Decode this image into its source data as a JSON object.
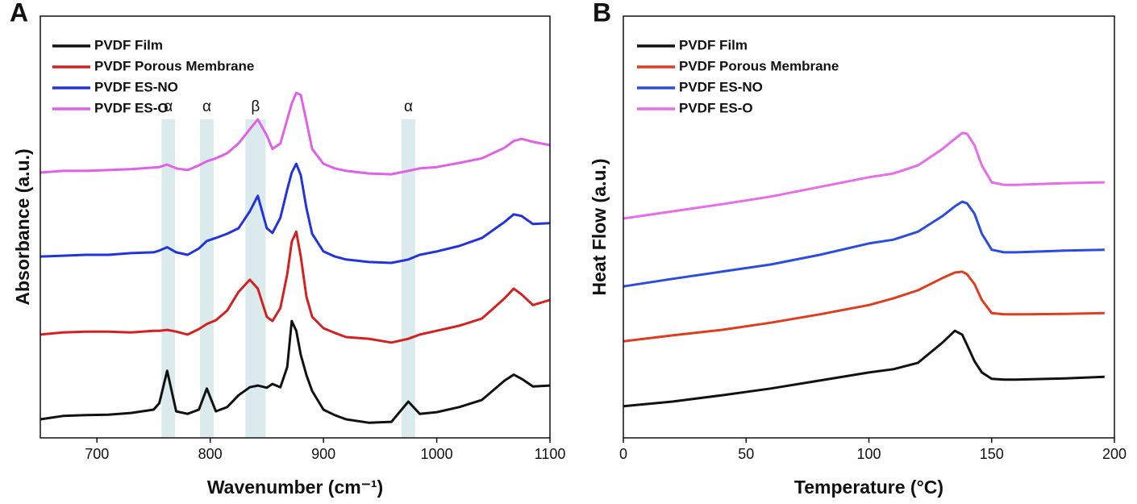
{
  "chart_data": [
    {
      "type": "line",
      "panel_label": "A",
      "xlabel": "Wavenumber (cm⁻¹)",
      "ylabel": "Absorbance (a.u.)",
      "xlim": [
        650,
        1100
      ],
      "xticks": [
        700,
        800,
        900,
        1000,
        1100
      ],
      "ylim": [
        0,
        100
      ],
      "x": [
        650,
        670,
        690,
        710,
        730,
        750,
        755,
        762,
        770,
        780,
        790,
        797,
        805,
        815,
        825,
        835,
        842,
        850,
        855,
        862,
        868,
        872,
        876,
        880,
        885,
        890,
        900,
        910,
        920,
        940,
        960,
        975,
        985,
        1000,
        1020,
        1040,
        1060,
        1068,
        1075,
        1085,
        1100
      ],
      "bands": [
        {
          "label": "α",
          "range": [
            757,
            769
          ]
        },
        {
          "label": "α",
          "range": [
            791,
            803
          ]
        },
        {
          "label": "β",
          "range": [
            831,
            849
          ]
        },
        {
          "label": "α",
          "range": [
            969,
            981
          ]
        }
      ],
      "series": [
        {
          "name": "PVDF Film",
          "color": "#111111",
          "values": [
            4.4,
            5.2,
            5.4,
            5.5,
            5.9,
            6.7,
            8.2,
            15.9,
            6.3,
            5.7,
            6.7,
            11.7,
            6.3,
            7.3,
            10.1,
            12.0,
            12.4,
            11.9,
            12.8,
            12.0,
            16.8,
            27.7,
            25.4,
            19.7,
            14.9,
            11.1,
            6.7,
            5.4,
            4.4,
            3.6,
            3.8,
            8.6,
            5.7,
            6.1,
            7.3,
            9.0,
            13.6,
            15.0,
            14.0,
            12.2,
            12.4
          ]
        },
        {
          "name": "PVDF Porous Membrane",
          "color": "#d42020",
          "values": [
            24.5,
            25.0,
            25.2,
            25.2,
            25.0,
            25.4,
            25.4,
            25.6,
            25.2,
            24.5,
            25.8,
            27.0,
            27.9,
            30.2,
            34.6,
            37.5,
            35.4,
            28.7,
            27.7,
            30.8,
            38.8,
            46.5,
            48.9,
            43.0,
            33.5,
            28.7,
            26.0,
            24.9,
            23.9,
            23.5,
            22.6,
            23.5,
            24.5,
            25.4,
            26.6,
            28.3,
            33.1,
            35.4,
            34.0,
            31.5,
            32.7
          ]
        },
        {
          "name": "PVDF ES-NO",
          "color": "#2233dd",
          "values": [
            43.0,
            43.2,
            43.4,
            43.4,
            43.8,
            44.0,
            44.4,
            45.2,
            44.0,
            43.4,
            44.9,
            46.7,
            47.4,
            48.4,
            49.7,
            53.7,
            57.4,
            49.7,
            48.6,
            52.2,
            58.9,
            62.9,
            65.0,
            62.3,
            54.5,
            48.4,
            44.2,
            43.0,
            42.3,
            41.7,
            41.5,
            42.3,
            43.4,
            44.2,
            45.5,
            47.4,
            51.2,
            53.0,
            52.6,
            50.7,
            50.9
          ]
        },
        {
          "name": "PVDF ES-O",
          "color": "#e060e8",
          "values": [
            62.9,
            63.3,
            63.3,
            63.5,
            63.7,
            64.1,
            64.2,
            64.8,
            63.9,
            63.5,
            64.6,
            65.6,
            66.3,
            67.5,
            69.8,
            73.2,
            75.5,
            71.7,
            68.5,
            69.8,
            75.5,
            79.3,
            81.8,
            81.3,
            75.1,
            68.5,
            65.0,
            63.9,
            63.3,
            62.7,
            62.5,
            63.3,
            63.9,
            64.2,
            65.2,
            66.3,
            68.8,
            70.4,
            70.9,
            70.2,
            69.4
          ]
        }
      ]
    },
    {
      "type": "line",
      "panel_label": "B",
      "xlabel": "Temperature (°C)",
      "ylabel": "Heat Flow (a.u.)",
      "xlim": [
        0,
        200
      ],
      "xticks": [
        0,
        50,
        100,
        150,
        200
      ],
      "ylim": [
        0,
        100
      ],
      "x": [
        0,
        20,
        40,
        60,
        80,
        100,
        110,
        120,
        130,
        135,
        138,
        140,
        143,
        146,
        150,
        155,
        160,
        180,
        196
      ],
      "series": [
        {
          "name": "PVDF Film",
          "color": "#111111",
          "values": [
            7.5,
            8.6,
            10.1,
            11.7,
            13.6,
            15.5,
            16.3,
            17.8,
            22.6,
            25.4,
            24.5,
            22.0,
            18.2,
            15.5,
            14.0,
            13.8,
            13.8,
            14.1,
            14.5
          ]
        },
        {
          "name": "PVDF Porous Membrane",
          "color": "#e03c1f",
          "values": [
            22.9,
            24.3,
            25.6,
            27.3,
            29.3,
            31.5,
            33.1,
            35.0,
            37.9,
            39.2,
            39.4,
            38.8,
            36.5,
            32.7,
            29.6,
            29.3,
            29.3,
            29.4,
            29.6
          ]
        },
        {
          "name": "PVDF ES-NO",
          "color": "#2a4de0",
          "values": [
            35.9,
            37.7,
            39.4,
            41.1,
            43.4,
            46.1,
            47.0,
            48.9,
            52.6,
            54.9,
            56.0,
            55.6,
            53.2,
            48.4,
            44.6,
            44.0,
            44.0,
            44.4,
            44.6
          ]
        },
        {
          "name": "PVDF ES-O",
          "color": "#e86de8",
          "values": [
            52.0,
            53.7,
            55.4,
            57.2,
            59.5,
            61.8,
            62.7,
            64.6,
            68.5,
            70.9,
            72.3,
            72.1,
            69.4,
            64.6,
            60.6,
            60.0,
            60.0,
            60.4,
            60.6
          ]
        }
      ]
    }
  ]
}
